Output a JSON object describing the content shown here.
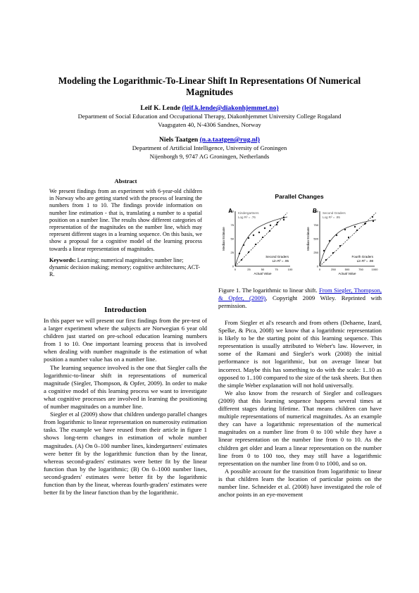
{
  "header": {
    "title": "Modeling the Logarithmic-To-Linear Shift In Representations Of Numerical Magnitudes",
    "authors": [
      {
        "name": "Leif K. Lende",
        "email": "(leif.k.lende@diakonhjemmet.no)",
        "affiliation": [
          "Department of Social Education and Occupational Therapy, Diakonhjemmet University College Rogaland",
          "Vaagsgaten 40, N-4306 Sandnes, Norway"
        ]
      },
      {
        "name": "Niels Taatgen",
        "email": "(n.a.taatgen@rug.nl)",
        "affiliation": [
          "Department of Artificial Intelligence, University of Groningen",
          "Nijenborgh 9, 9747 AG Groningen, Netherlands"
        ]
      }
    ]
  },
  "abstract": {
    "heading": "Abstract",
    "text": "We present findings from an experiment with 6-year-old children in Norway who are getting started with the process of learning the numbers from 1 to 10. The findings provide information on number line estimation - that is, translating a number to a spatial position on a number line. The results show different categories of representation of the magnitudes on the number line, which may represent different stages in a learning sequence. On this basis, we show a proposal for a cognitive model of the learning process towards a linear representation of magnitudes.",
    "keywords_label": "Keywords:",
    "keywords": "Learning; numerical magnitudes; number line; dynamic decision making; memory; cognitive architectures; ACT-R."
  },
  "figure": {
    "title": "Parallel Changes",
    "panels": [
      {
        "letter": "A",
        "y_label": "Median Estimate",
        "x_label": "Actual Value",
        "yticks": [
          0,
          25,
          50,
          75,
          100
        ],
        "xticks": [
          0,
          25,
          50,
          75,
          100
        ],
        "upper_group": "Kindergartners",
        "upper_fit": "Log R² = .76",
        "lower_group": "Second Graders",
        "lower_fit": "Lin R² = .95"
      },
      {
        "letter": "B",
        "y_label": "Median Estimate",
        "x_label": "Actual Value",
        "yticks": [
          0,
          250,
          500,
          750,
          1000
        ],
        "xticks": [
          0,
          250,
          500,
          750,
          1000
        ],
        "upper_group": "Second Graders",
        "upper_fit": "Log R² = .95",
        "lower_group": "Fourth Graders",
        "lower_fit": "Lin R² = .98"
      }
    ],
    "caption": "Figure 1. The logarithmic to linear shift. ",
    "caption_link": "From Siegler, Thompson, & Opfer, (2009)",
    "caption_end": ", Copyright 2009 Wiley. Reprinted with permission."
  },
  "introduction": {
    "heading": "Introduction",
    "paragraphs": [
      "In this paper we will present our first findings from the pre-test of a larger experiment where the subjects are Norwegian 6 year old children just started on pre-school education learning numbers from 1 to 10. One important learning process that is involved when dealing with number magnitude is the estimation of what position a number value has on a number line.",
      "The learning sequence involved is the one that Siegler calls the logarithmic-to-linear shift in representations of numerical magnitude (Siegler, Thompson, & Opfer, 2009). In order to make a cognitive model of this learning process we want to investigate what cognitive processes are involved in learning the positioning of number magnitudes on a number line.",
      "Siegler et al (2009) show that children undergo parallel changes from logarithmic to linear representation on numerosity estimation tasks. The example we have reused from their article in figure 1 shows long-term changes in estimation of whole number magnitudes. (A) On 0–100 number lines, kindergartners' estimates were better fit by the logarithmic function than by the linear, whereas second-graders' estimates were better fit by the linear function than by the logarithmic; (B) On 0–1000 number lines, second-graders' estimates were better fit by the logarithmic function than by the linear, whereas fourth-graders' estimates were better fit by the linear function than by the logarithmic.",
      "From Siegler et al's research and from others (Dehaene, Izard, Spelke, & Pica, 2008) we know that a logarithmic representation is likely to be the starting point of this learning sequence. This representation is usually attributed to Weber's law. However, in some of the Ramani and Siegler's work (2008) the initial performance is not logarithmic, but on average linear but incorrect. Maybe this has something to do with the scale: 1..10 as opposed to 1..100 compared to the size of the task sheets. But then the simple Weber explanation will not hold universally.",
      "We also know from the research of Siegler and colleagues (2009) that this learning sequence happens several times at different stages during lifetime. That means children can have multiple representations of numerical magnitudes. As an example they can have a logarithmic representation of the numerical magnitudes on a number line from 0 to 100 while they have a linear representation on the number line from 0 to 10. As the children get older and learn a linear representation on the number line from 0 to 100 too, they may still have a logarithmic representation on the number line from 0 to 1000, and so on.",
      "A possible account for the transition from logarithmic to linear is that children learn the location of particular points on the number line. Schneider et al. (2008) have investigated the role of anchor points in an eye-movement"
    ]
  }
}
